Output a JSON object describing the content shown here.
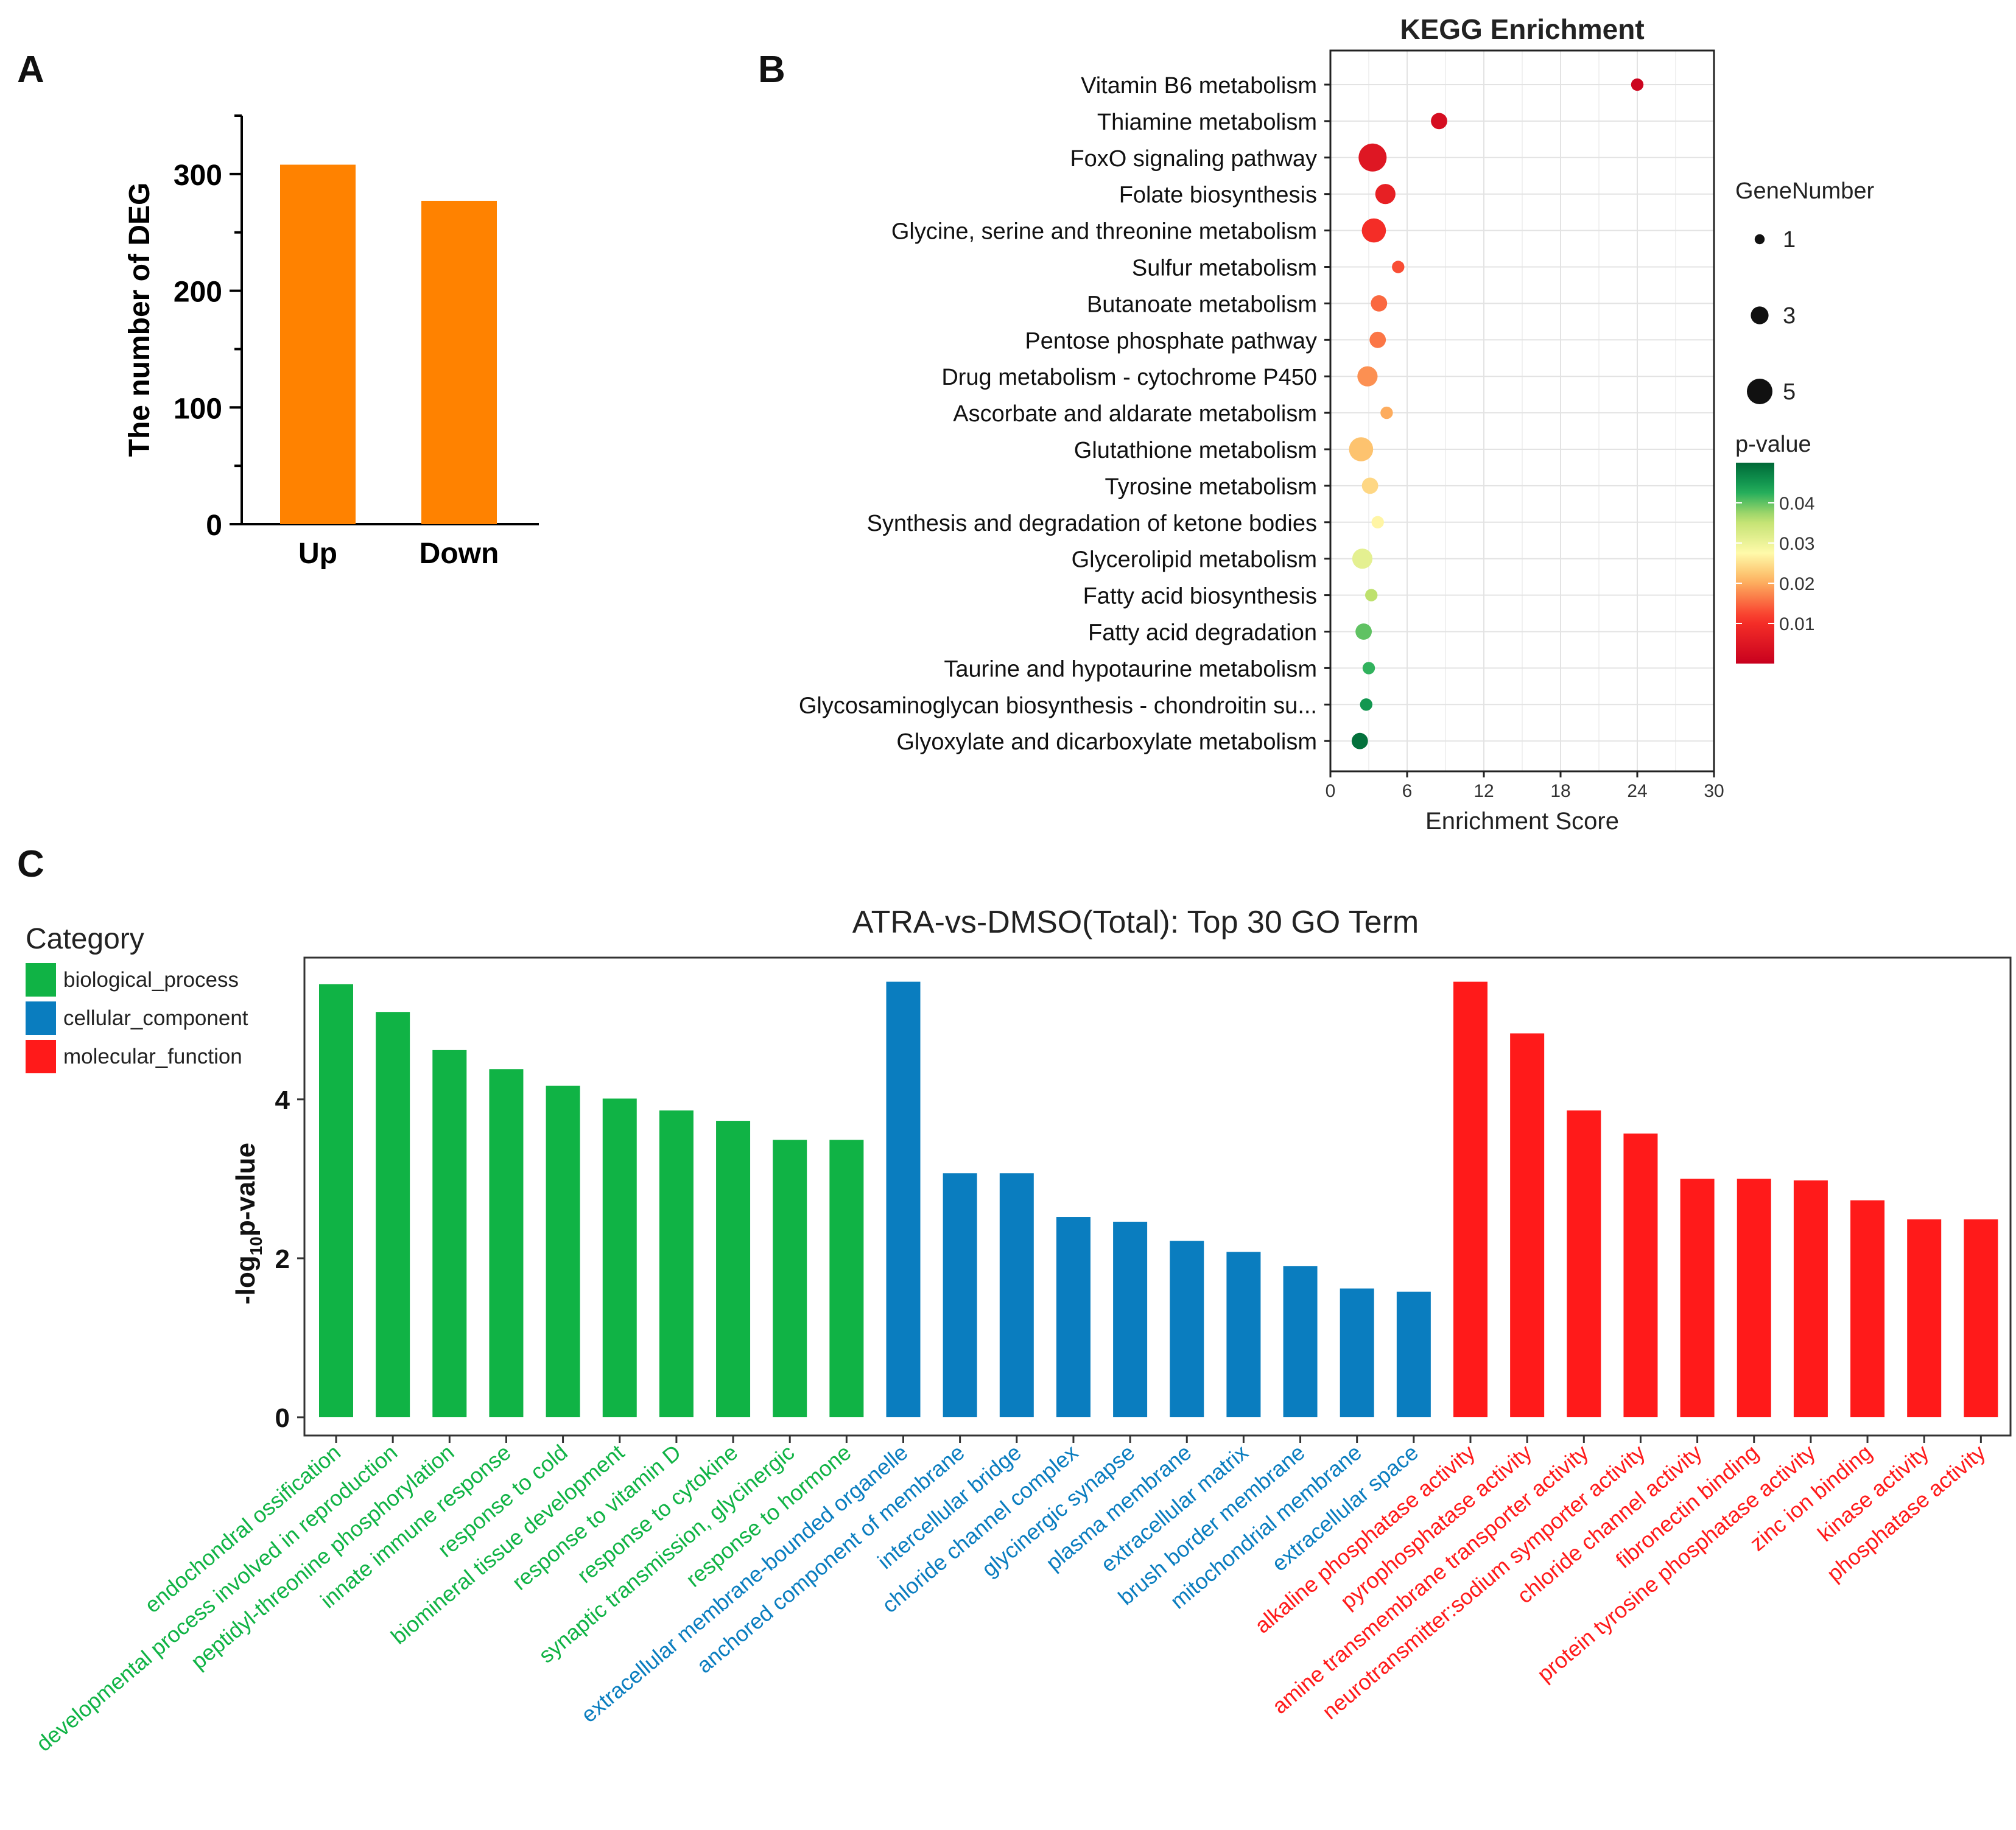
{
  "panels": {
    "a": "A",
    "b": "B",
    "c": "C"
  },
  "chart_data": [
    {
      "panel": "A",
      "type": "bar",
      "title": "",
      "xlabel": "",
      "ylabel": "The number of DEG",
      "categories": [
        "Up",
        "Down"
      ],
      "values": [
        308,
        277
      ],
      "ylim": [
        0,
        350
      ],
      "yticks": [
        0,
        100,
        200,
        300
      ],
      "color": "#ff8200"
    },
    {
      "panel": "B",
      "type": "scatter",
      "title": "KEGG  Enrichment",
      "xlabel": "Enrichment Score",
      "ylabel": "",
      "xlim": [
        0,
        30
      ],
      "xticks": [
        0,
        6,
        12,
        18,
        24,
        30
      ],
      "grid": true,
      "size_legend": {
        "title": "GeneNumber",
        "values": [
          1,
          3,
          5
        ]
      },
      "color_legend": {
        "title": "p-value",
        "range": [
          0,
          0.05
        ],
        "ticks": [
          0.04,
          0.03,
          0.02,
          0.01
        ],
        "ticklabels": [
          "0.04",
          "0.03",
          "0.02",
          "0.01"
        ],
        "low_color": "#c8001e",
        "mid_color": "#ffff9e",
        "high_color": "#006837"
      },
      "points": [
        {
          "term": "Vitamin B6 metabolism",
          "x": 24.0,
          "genes": 1,
          "p": 0.001
        },
        {
          "term": "Thiamine metabolism",
          "x": 8.5,
          "genes": 2,
          "p": 0.003
        },
        {
          "term": "FoxO signaling pathway",
          "x": 3.3,
          "genes": 5,
          "p": 0.005
        },
        {
          "term": "Folate biosynthesis",
          "x": 4.3,
          "genes": 3,
          "p": 0.007
        },
        {
          "term": "Glycine, serine and threonine metabolism",
          "x": 3.4,
          "genes": 4,
          "p": 0.01
        },
        {
          "term": "Sulfur metabolism",
          "x": 5.3,
          "genes": 1,
          "p": 0.013
        },
        {
          "term": "Butanoate metabolism",
          "x": 3.8,
          "genes": 2,
          "p": 0.015
        },
        {
          "term": "Pentose phosphate pathway",
          "x": 3.7,
          "genes": 2,
          "p": 0.016
        },
        {
          "term": "Drug metabolism - cytochrome P450",
          "x": 2.9,
          "genes": 3,
          "p": 0.018
        },
        {
          "term": "Ascorbate and aldarate metabolism",
          "x": 4.4,
          "genes": 1,
          "p": 0.02
        },
        {
          "term": "Glutathione metabolism",
          "x": 2.4,
          "genes": 4,
          "p": 0.022
        },
        {
          "term": "Tyrosine metabolism",
          "x": 3.1,
          "genes": 2,
          "p": 0.024
        },
        {
          "term": "Synthesis and degradation of ketone bodies",
          "x": 3.7,
          "genes": 1,
          "p": 0.027
        },
        {
          "term": "Glycerolipid metabolism",
          "x": 2.5,
          "genes": 3,
          "p": 0.031
        },
        {
          "term": "Fatty acid biosynthesis",
          "x": 3.2,
          "genes": 1,
          "p": 0.036
        },
        {
          "term": "Fatty acid degradation",
          "x": 2.6,
          "genes": 2,
          "p": 0.04
        },
        {
          "term": "Taurine and hypotaurine metabolism",
          "x": 3.0,
          "genes": 1,
          "p": 0.042
        },
        {
          "term": "Glycosaminoglycan biosynthesis - chondroitin su...",
          "x": 2.8,
          "genes": 1,
          "p": 0.045
        },
        {
          "term": "Glyoxylate and dicarboxylate metabolism",
          "x": 2.3,
          "genes": 2,
          "p": 0.049
        }
      ]
    },
    {
      "panel": "C",
      "type": "bar",
      "title": "ATRA-vs-DMSO(Total): Top 30 GO Term",
      "xlabel": "",
      "ylabel_prefix": "-log",
      "ylabel_sub": "10",
      "ylabel_suffix": "p-value",
      "ylim": [
        0,
        5.75
      ],
      "yticks": [
        0,
        2,
        4
      ],
      "legend": {
        "title": "Category",
        "items": [
          {
            "name": "biological_process",
            "color": "#10b345"
          },
          {
            "name": "cellular_component",
            "color": "#0a7dbf"
          },
          {
            "name": "molecular_function",
            "color": "#ff1a1a"
          }
        ]
      },
      "bars": [
        {
          "term": "endochondral ossification",
          "value": 5.45,
          "category": 0
        },
        {
          "term": "developmental process involved in reproduction",
          "value": 5.1,
          "category": 0
        },
        {
          "term": "peptidyl-threonine phosphorylation",
          "value": 4.62,
          "category": 0
        },
        {
          "term": "innate immune response",
          "value": 4.38,
          "category": 0
        },
        {
          "term": "response to cold",
          "value": 4.17,
          "category": 0
        },
        {
          "term": "biomineral tissue development",
          "value": 4.01,
          "category": 0
        },
        {
          "term": "response to vitamin D",
          "value": 3.86,
          "category": 0
        },
        {
          "term": "response to cytokine",
          "value": 3.73,
          "category": 0
        },
        {
          "term": "synaptic transmission, glycinergic",
          "value": 3.49,
          "category": 0
        },
        {
          "term": "response to hormone",
          "value": 3.49,
          "category": 0
        },
        {
          "term": "extracellular membrane-bounded organelle",
          "value": 5.48,
          "category": 1
        },
        {
          "term": "anchored component of membrane",
          "value": 3.07,
          "category": 1
        },
        {
          "term": "intercellular bridge",
          "value": 3.07,
          "category": 1
        },
        {
          "term": "chloride channel complex",
          "value": 2.52,
          "category": 1
        },
        {
          "term": "glycinergic synapse",
          "value": 2.46,
          "category": 1
        },
        {
          "term": "plasma membrane",
          "value": 2.22,
          "category": 1
        },
        {
          "term": "extracellular matrix",
          "value": 2.08,
          "category": 1
        },
        {
          "term": "brush border membrane",
          "value": 1.9,
          "category": 1
        },
        {
          "term": "mitochondrial membrane",
          "value": 1.62,
          "category": 1
        },
        {
          "term": "extracellular space",
          "value": 1.58,
          "category": 1
        },
        {
          "term": "alkaline phosphatase activity",
          "value": 5.48,
          "category": 2
        },
        {
          "term": "pyrophosphatase activity",
          "value": 4.83,
          "category": 2
        },
        {
          "term": "amine transmembrane transporter activity",
          "value": 3.86,
          "category": 2
        },
        {
          "term": "neurotransmitter:sodium symporter activity",
          "value": 3.57,
          "category": 2
        },
        {
          "term": "chloride channel activity",
          "value": 3.0,
          "category": 2
        },
        {
          "term": "fibronectin binding",
          "value": 3.0,
          "category": 2
        },
        {
          "term": "protein tyrosine phosphatase activity",
          "value": 2.98,
          "category": 2
        },
        {
          "term": "zinc ion binding",
          "value": 2.73,
          "category": 2
        },
        {
          "term": "kinase activity",
          "value": 2.49,
          "category": 2
        },
        {
          "term": "phosphatase activity",
          "value": 2.49,
          "category": 2
        }
      ]
    }
  ]
}
